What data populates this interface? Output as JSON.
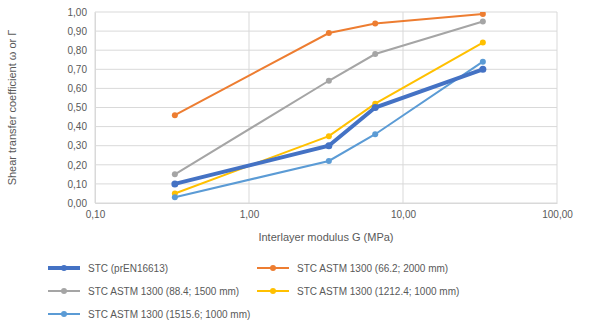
{
  "chart_data": {
    "type": "line",
    "x_label": "Interlayer modulus G (MPa)",
    "y_label": "Shear transfer coefficient ω or Γ",
    "log": "x",
    "grid": true,
    "legend": "bottom",
    "marker": "circle",
    "x": [
      0.33,
      3.3,
      6.6,
      33
    ],
    "xlim": [
      0.1,
      100
    ],
    "xticks": [
      {
        "value": 0.1,
        "label": "0,10"
      },
      {
        "value": 1,
        "label": "1,00"
      },
      {
        "value": 10,
        "label": "10,00"
      },
      {
        "value": 100,
        "label": "100,00"
      }
    ],
    "ylim": [
      0,
      1
    ],
    "yticks": [
      {
        "value": 0,
        "label": "0,00"
      },
      {
        "value": 0.1,
        "label": "0,10"
      },
      {
        "value": 0.2,
        "label": "0,20"
      },
      {
        "value": 0.3,
        "label": "0,30"
      },
      {
        "value": 0.4,
        "label": "0,40"
      },
      {
        "value": 0.5,
        "label": "0,50"
      },
      {
        "value": 0.6,
        "label": "0,60"
      },
      {
        "value": 0.7,
        "label": "0,70"
      },
      {
        "value": 0.8,
        "label": "0,80"
      },
      {
        "value": 0.9,
        "label": "0,90"
      },
      {
        "value": 1,
        "label": "1,00"
      }
    ],
    "series": [
      {
        "name": "STC (prEN16613)",
        "color": "#4472c4",
        "values": [
          0.1,
          0.3,
          0.5,
          0.7
        ]
      },
      {
        "name": "STC ASTM 1300 (66.2; 2000 mm)",
        "color": "#ed7d31",
        "values": [
          0.46,
          0.89,
          0.94,
          0.99
        ]
      },
      {
        "name": "STC ASTM 1300 (88.4; 1500 mm)",
        "color": "#a5a5a5",
        "values": [
          0.15,
          0.64,
          0.78,
          0.95
        ]
      },
      {
        "name": "STC ASTM 1300 (1212.4; 1000 mm)",
        "color": "#ffc000",
        "values": [
          0.05,
          0.35,
          0.52,
          0.84
        ]
      },
      {
        "name": "STC ASTM 1300 (1515.6; 1000 mm)",
        "color": "#5b9bd5",
        "values": [
          0.03,
          0.22,
          0.36,
          0.74
        ]
      }
    ]
  }
}
